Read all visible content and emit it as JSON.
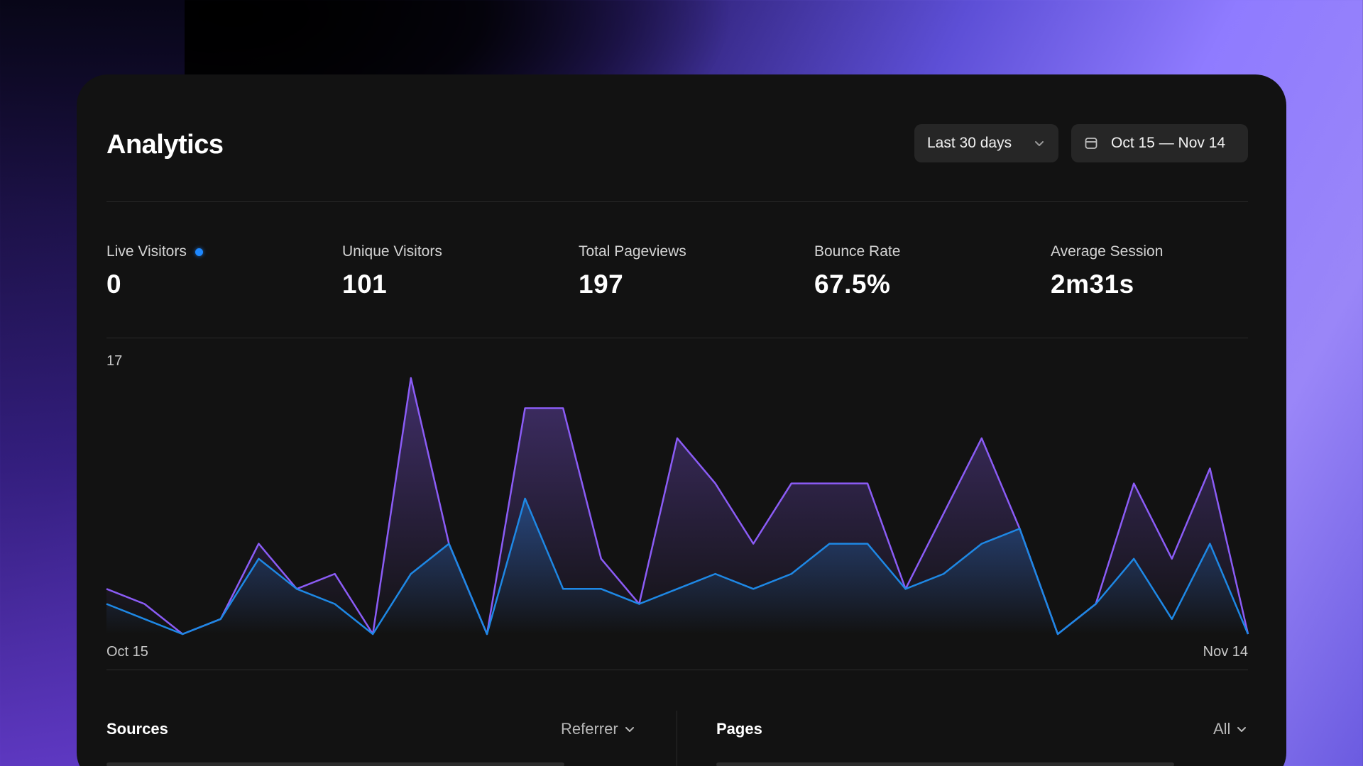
{
  "header": {
    "title": "Analytics",
    "range_label": "Last 30 days",
    "date_range": "Oct 15 — Nov 14"
  },
  "stats": [
    {
      "label": "Live Visitors",
      "value": "0",
      "live": true
    },
    {
      "label": "Unique Visitors",
      "value": "101"
    },
    {
      "label": "Total Pageviews",
      "value": "197"
    },
    {
      "label": "Bounce Rate",
      "value": "67.5%"
    },
    {
      "label": "Average Session",
      "value": "2m31s"
    }
  ],
  "chart_data": {
    "type": "area",
    "ymax_label": "17",
    "ylim": [
      0,
      17
    ],
    "x_start_label": "Oct 15",
    "x_end_label": "Nov 14",
    "series": [
      {
        "color": "#8b5cf6",
        "values": [
          3,
          2,
          0,
          1,
          6,
          3,
          4,
          0,
          17,
          6,
          0,
          15,
          15,
          5,
          2,
          13,
          10,
          6,
          10,
          10,
          10,
          3,
          8,
          13,
          7,
          0,
          2,
          10,
          5,
          11,
          0
        ]
      },
      {
        "color": "#1e88e5",
        "values": [
          2,
          1,
          0,
          1,
          5,
          3,
          2,
          0,
          4,
          6,
          0,
          9,
          3,
          3,
          2,
          3,
          4,
          3,
          4,
          6,
          6,
          3,
          4,
          6,
          7,
          0,
          2,
          5,
          1,
          6,
          0
        ]
      }
    ]
  },
  "sources": {
    "title": "Sources",
    "filter": "Referrer"
  },
  "pages": {
    "title": "Pages",
    "filter": "All"
  },
  "colors": {
    "accent_purple": "#8b5cf6",
    "accent_blue": "#1e88e5",
    "panel": "#121212",
    "live_dot": "#1e88ff"
  }
}
